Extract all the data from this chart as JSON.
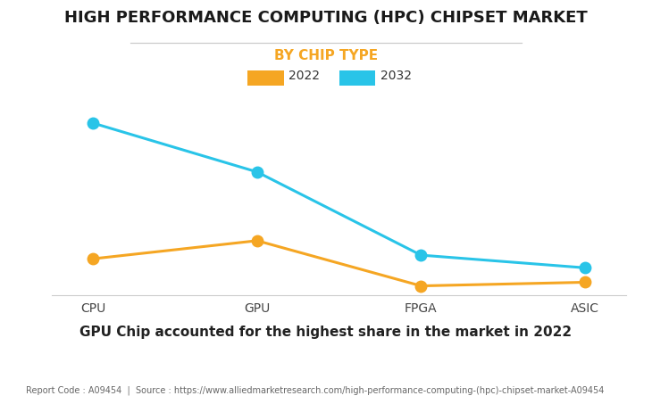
{
  "title": "HIGH PERFORMANCE COMPUTING (HPC) CHIPSET MARKET",
  "subtitle": "BY CHIP TYPE",
  "categories": [
    "CPU",
    "GPU",
    "FPGA",
    "ASIC"
  ],
  "series": [
    {
      "label": "2022",
      "color": "#F5A623",
      "values": [
        0.2,
        0.3,
        0.05,
        0.07
      ]
    },
    {
      "label": "2032",
      "color": "#29C4E8",
      "values": [
        0.95,
        0.68,
        0.22,
        0.15
      ]
    }
  ],
  "ylim": [
    0,
    1.05
  ],
  "subtitle_color": "#F5A623",
  "background_color": "#FFFFFF",
  "grid_color": "#DDDDDD",
  "caption": "GPU Chip accounted for the highest share in the market in 2022",
  "footer": "Report Code : A09454  |  Source : https://www.alliedmarketresearch.com/high-performance-computing-(hpc)-chipset-market-A09454",
  "marker_size": 9,
  "line_width": 2.2,
  "title_fontsize": 13,
  "subtitle_fontsize": 11,
  "caption_fontsize": 11,
  "footer_fontsize": 7,
  "tick_fontsize": 10,
  "legend_fontsize": 10
}
